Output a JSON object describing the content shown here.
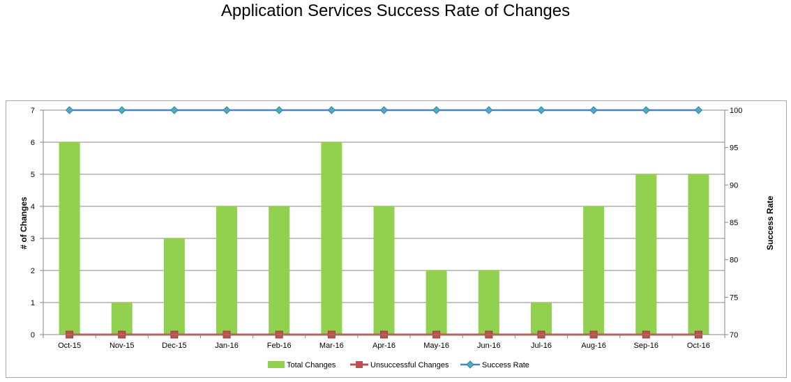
{
  "chart_data": {
    "type": "bar",
    "title": "Application Services Success Rate of Changes",
    "categories": [
      "Oct-15",
      "Nov-15",
      "Dec-15",
      "Jan-16",
      "Feb-16",
      "Mar-16",
      "Apr-16",
      "May-16",
      "Jun-16",
      "Jul-16",
      "Aug-16",
      "Sep-16",
      "Oct-16"
    ],
    "ylabel": "# of Changes",
    "y2label": "Success Rate",
    "ylim": [
      0,
      7
    ],
    "y2lim": [
      70,
      100
    ],
    "yticks": [
      0,
      1,
      2,
      3,
      4,
      5,
      6,
      7
    ],
    "y2ticks": [
      70,
      75,
      80,
      85,
      90,
      95,
      100
    ],
    "grid": true,
    "legend_position": "bottom",
    "series": [
      {
        "name": "Total Changes",
        "type": "bar",
        "axis": "left",
        "color": "#92d050",
        "values": [
          6,
          1,
          3,
          4,
          4,
          6,
          4,
          2,
          2,
          1,
          4,
          5,
          5
        ]
      },
      {
        "name": "Unsuccessful Changes",
        "type": "line",
        "axis": "left",
        "color": "#c0504d",
        "marker": "square",
        "values": [
          0,
          0,
          0,
          0,
          0,
          0,
          0,
          0,
          0,
          0,
          0,
          0,
          0
        ]
      },
      {
        "name": "Success Rate",
        "type": "line",
        "axis": "right",
        "color": "#4f81bd",
        "marker": "diamond",
        "values": [
          100,
          100,
          100,
          100,
          100,
          100,
          100,
          100,
          100,
          100,
          100,
          100,
          100
        ]
      }
    ]
  }
}
